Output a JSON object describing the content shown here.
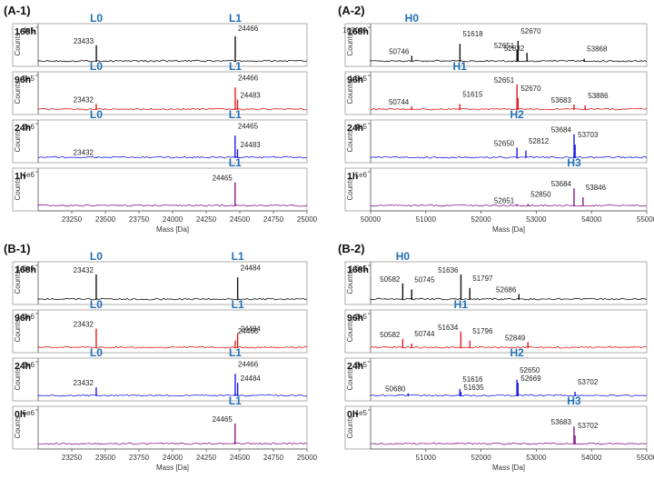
{
  "colors": {
    "168h": "#111111",
    "96h": "#e31a1c",
    "24h": "#1c1ce0",
    "1h": "#8b1a8b",
    "0h": "#8b1a8b",
    "chain": "#1f6fb5",
    "frame": "#9a9a9a"
  },
  "x_axis_title": "Mass [Da]",
  "y_axis_title": "Counts",
  "chart_data": [
    {
      "id": "A-1",
      "type": "line",
      "panel_label": "(A-1)",
      "xlim": [
        23000,
        25000
      ],
      "xticks": [
        23250,
        23500,
        23750,
        24000,
        24250,
        24500,
        24750,
        25000
      ],
      "series": [
        {
          "name": "168h",
          "color_key": "168h",
          "ymax_label": "4e5",
          "chain": {
            "text": "L0",
            "x": 23433
          },
          "chain2": {
            "text": "L1",
            "x": 24466
          },
          "peaks": [
            {
              "x": 23433,
              "h": 0.55,
              "label": "23433"
            },
            {
              "x": 24466,
              "h": 0.85,
              "label": "24466"
            }
          ]
        },
        {
          "name": "96h",
          "color_key": "96h",
          "ymax_label": "5e5",
          "chain": {
            "text": "L0",
            "x": 23432
          },
          "chain2": {
            "text": "L1",
            "x": 24466
          },
          "peaks": [
            {
              "x": 23432,
              "h": 0.2,
              "label": "23432"
            },
            {
              "x": 24466,
              "h": 0.75,
              "label": "24466"
            },
            {
              "x": 24483,
              "h": 0.35,
              "label": "24483"
            }
          ]
        },
        {
          "name": "24h",
          "color_key": "24h",
          "ymax_label": "2e6",
          "chain": {
            "text": "L0",
            "x": 23432
          },
          "chain2": {
            "text": "L1",
            "x": 24465
          },
          "peaks": [
            {
              "x": 23432,
              "h": 0.04,
              "label": "23432"
            },
            {
              "x": 24465,
              "h": 0.75,
              "label": "24465"
            },
            {
              "x": 24483,
              "h": 0.3,
              "label": "24483"
            }
          ]
        },
        {
          "name": "1h",
          "color_key": "1h",
          "ymax_label": "4e6",
          "chain": null,
          "chain2": {
            "text": "L1",
            "x": 24465
          },
          "peaks": [
            {
              "x": 24465,
              "h": 0.8,
              "label": "24465"
            }
          ]
        }
      ]
    },
    {
      "id": "A-2",
      "type": "line",
      "panel_label": "(A-2)",
      "xlim": [
        50000,
        55000
      ],
      "xticks": [
        50000,
        51000,
        52000,
        53000,
        54000,
        55000
      ],
      "series": [
        {
          "name": "168h",
          "color_key": "168h",
          "ymax_label": "100000",
          "chain": {
            "text": "H0",
            "x": 50746
          },
          "chain2": null,
          "peaks": [
            {
              "x": 50746,
              "h": 0.2,
              "label": "50746"
            },
            {
              "x": 51618,
              "h": 0.6,
              "label": "51618"
            },
            {
              "x": 52651,
              "h": 0.4,
              "label": "52651"
            },
            {
              "x": 52670,
              "h": 0.7,
              "label": "52670"
            },
            {
              "x": 52832,
              "h": 0.3,
              "label": "52832"
            },
            {
              "x": 53868,
              "h": 0.1,
              "label": "53868"
            }
          ]
        },
        {
          "name": "96h",
          "color_key": "96h",
          "ymax_label": "1.5e5",
          "chain": {
            "text": "H1",
            "x": 51615
          },
          "chain2": null,
          "peaks": [
            {
              "x": 50744,
              "h": 0.12,
              "label": "50744"
            },
            {
              "x": 51615,
              "h": 0.2,
              "label": "51615"
            },
            {
              "x": 52651,
              "h": 0.85,
              "label": "52651"
            },
            {
              "x": 52670,
              "h": 0.4,
              "label": "52670"
            },
            {
              "x": 53683,
              "h": 0.18,
              "label": "53683"
            },
            {
              "x": 53886,
              "h": 0.15,
              "label": "53886"
            }
          ]
        },
        {
          "name": "24h",
          "color_key": "24h",
          "ymax_label": "4e5",
          "chain": {
            "text": "H2",
            "x": 52650
          },
          "chain2": null,
          "peaks": [
            {
              "x": 52650,
              "h": 0.35,
              "label": "52650"
            },
            {
              "x": 52812,
              "h": 0.25,
              "label": "52812"
            },
            {
              "x": 53684,
              "h": 0.8,
              "label": "53684"
            },
            {
              "x": 53703,
              "h": 0.45,
              "label": "53703"
            }
          ]
        },
        {
          "name": "1h",
          "color_key": "1h",
          "ymax_label": "1e6",
          "chain": {
            "text": "H3",
            "x": 53684
          },
          "chain2": null,
          "peaks": [
            {
              "x": 52651,
              "h": 0.05,
              "label": "52651"
            },
            {
              "x": 52850,
              "h": 0.08,
              "label": "52850"
            },
            {
              "x": 53684,
              "h": 0.6,
              "label": "53684"
            },
            {
              "x": 53846,
              "h": 0.3,
              "label": "53846"
            }
          ]
        }
      ]
    },
    {
      "id": "B-1",
      "type": "line",
      "panel_label": "(B-1)",
      "xlim": [
        23000,
        25000
      ],
      "xticks": [
        23250,
        23500,
        23750,
        24000,
        24250,
        24500,
        24750,
        25000
      ],
      "series": [
        {
          "name": "168h",
          "color_key": "168h",
          "ymax_label": "1.5e6",
          "chain": {
            "text": "L0",
            "x": 23432
          },
          "chain2": {
            "text": "L1",
            "x": 24484
          },
          "peaks": [
            {
              "x": 23432,
              "h": 0.85,
              "label": "23432"
            },
            {
              "x": 24484,
              "h": 0.75,
              "label": "24484"
            }
          ]
        },
        {
          "name": "96h",
          "color_key": "96h",
          "ymax_label": "1.5e6",
          "chain": {
            "text": "L0",
            "x": 23432
          },
          "chain2": {
            "text": "L1",
            "x": 24484
          },
          "peaks": [
            {
              "x": 23432,
              "h": 0.65,
              "label": "23432"
            },
            {
              "x": 24466,
              "h": 0.25,
              "label": "24466"
            },
            {
              "x": 24484,
              "h": 0.5,
              "label": "24484"
            }
          ]
        },
        {
          "name": "24h",
          "color_key": "24h",
          "ymax_label": "2e6",
          "chain": {
            "text": "L0",
            "x": 23432
          },
          "chain2": {
            "text": "L1",
            "x": 24466
          },
          "peaks": [
            {
              "x": 23432,
              "h": 0.3,
              "label": "23432"
            },
            {
              "x": 24466,
              "h": 0.75,
              "label": "24466"
            },
            {
              "x": 24484,
              "h": 0.45,
              "label": "24484"
            }
          ]
        },
        {
          "name": "0h",
          "color_key": "0h",
          "ymax_label": "6e6",
          "chain": null,
          "chain2": {
            "text": "L1",
            "x": 24465
          },
          "peaks": [
            {
              "x": 24465,
              "h": 0.7,
              "label": "24465"
            }
          ]
        }
      ]
    },
    {
      "id": "B-2",
      "type": "line",
      "panel_label": "(B-2)",
      "xlim": [
        50000,
        55000
      ],
      "xticks": [
        51000,
        52000,
        53000,
        54000,
        55000
      ],
      "series": [
        {
          "name": "168h",
          "color_key": "168h",
          "ymax_label": "1.5e5",
          "chain": {
            "text": "H0",
            "x": 50582
          },
          "chain2": null,
          "peaks": [
            {
              "x": 50582,
              "h": 0.55,
              "label": "50582"
            },
            {
              "x": 50745,
              "h": 0.35,
              "label": "50745"
            },
            {
              "x": 51636,
              "h": 0.85,
              "label": "51636"
            },
            {
              "x": 51797,
              "h": 0.4,
              "label": "51797"
            },
            {
              "x": 52686,
              "h": 0.2,
              "label": "52686"
            }
          ]
        },
        {
          "name": "96h",
          "color_key": "96h",
          "ymax_label": "2e5",
          "chain": {
            "text": "H1",
            "x": 51634
          },
          "chain2": null,
          "peaks": [
            {
              "x": 50582,
              "h": 0.3,
              "label": "50582"
            },
            {
              "x": 50744,
              "h": 0.15,
              "label": "50744"
            },
            {
              "x": 51634,
              "h": 0.55,
              "label": "51634"
            },
            {
              "x": 51796,
              "h": 0.25,
              "label": "51796"
            },
            {
              "x": 52849,
              "h": 0.2,
              "label": "52849"
            }
          ]
        },
        {
          "name": "24h",
          "color_key": "24h",
          "ymax_label": "2e5",
          "chain": {
            "text": "H2",
            "x": 52650
          },
          "chain2": null,
          "peaks": [
            {
              "x": 50680,
              "h": 0.1,
              "label": "50680"
            },
            {
              "x": 51616,
              "h": 0.25,
              "label": "51616"
            },
            {
              "x": 51635,
              "h": 0.15,
              "label": "51635"
            },
            {
              "x": 52650,
              "h": 0.55,
              "label": "52650"
            },
            {
              "x": 52669,
              "h": 0.45,
              "label": "52669"
            },
            {
              "x": 53702,
              "h": 0.15,
              "label": "53702"
            }
          ]
        },
        {
          "name": "0h",
          "color_key": "0h",
          "ymax_label": "4e5",
          "chain": {
            "text": "H3",
            "x": 53683
          },
          "chain2": null,
          "peaks": [
            {
              "x": 53683,
              "h": 0.6,
              "label": "53683"
            },
            {
              "x": 53702,
              "h": 0.3,
              "label": "53702"
            }
          ]
        }
      ]
    }
  ]
}
